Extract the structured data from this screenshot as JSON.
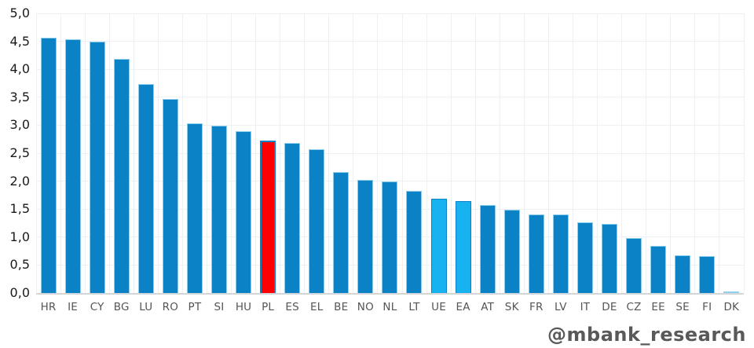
{
  "watermark": "@mbank_research",
  "chart_data": {
    "type": "bar",
    "title": "",
    "xlabel": "",
    "ylabel": "",
    "ylim": [
      0,
      5
    ],
    "ytick_step": 0.5,
    "yticks": [
      "0,0",
      "0,5",
      "1,0",
      "1,5",
      "2,0",
      "2,5",
      "3,0",
      "3,5",
      "4,0",
      "4,5",
      "5,0"
    ],
    "grid": true,
    "legend_position": "none",
    "decimal_style": "comma",
    "categories": [
      "HR",
      "IE",
      "CY",
      "BG",
      "LU",
      "RO",
      "PT",
      "SI",
      "HU",
      "PL",
      "ES",
      "EL",
      "BE",
      "NO",
      "NL",
      "LT",
      "UE",
      "EA",
      "AT",
      "SK",
      "FR",
      "LV",
      "IT",
      "DE",
      "CZ",
      "EE",
      "SE",
      "FI",
      "DK"
    ],
    "values": [
      4.56,
      4.53,
      4.49,
      4.18,
      3.73,
      3.47,
      3.03,
      2.99,
      2.89,
      2.73,
      2.68,
      2.57,
      2.16,
      2.02,
      2.0,
      1.82,
      1.68,
      1.65,
      1.57,
      1.49,
      1.41,
      1.4,
      1.26,
      1.23,
      0.98,
      0.84,
      0.68,
      0.66,
      0.03
    ],
    "bar_styles": {
      "PL": "red",
      "UE": "accent",
      "EA": "accent",
      "DK": "pale"
    },
    "colors": {
      "bar_default": "#0c82c6",
      "bar_default_edge": "#8ccdec",
      "bar_red": "#fe0000",
      "bar_red_edge": "#0c82c6",
      "bar_accent": "#18b2f0",
      "bar_accent_edge": "#0c82c6",
      "bar_pale": "#8fd2f0",
      "grid": "#eef1f3",
      "axis_line": "#d2d6d9",
      "ytick_text": "#1a1a1a",
      "xtick_text": "#555555",
      "watermark_text": "#595959"
    }
  }
}
